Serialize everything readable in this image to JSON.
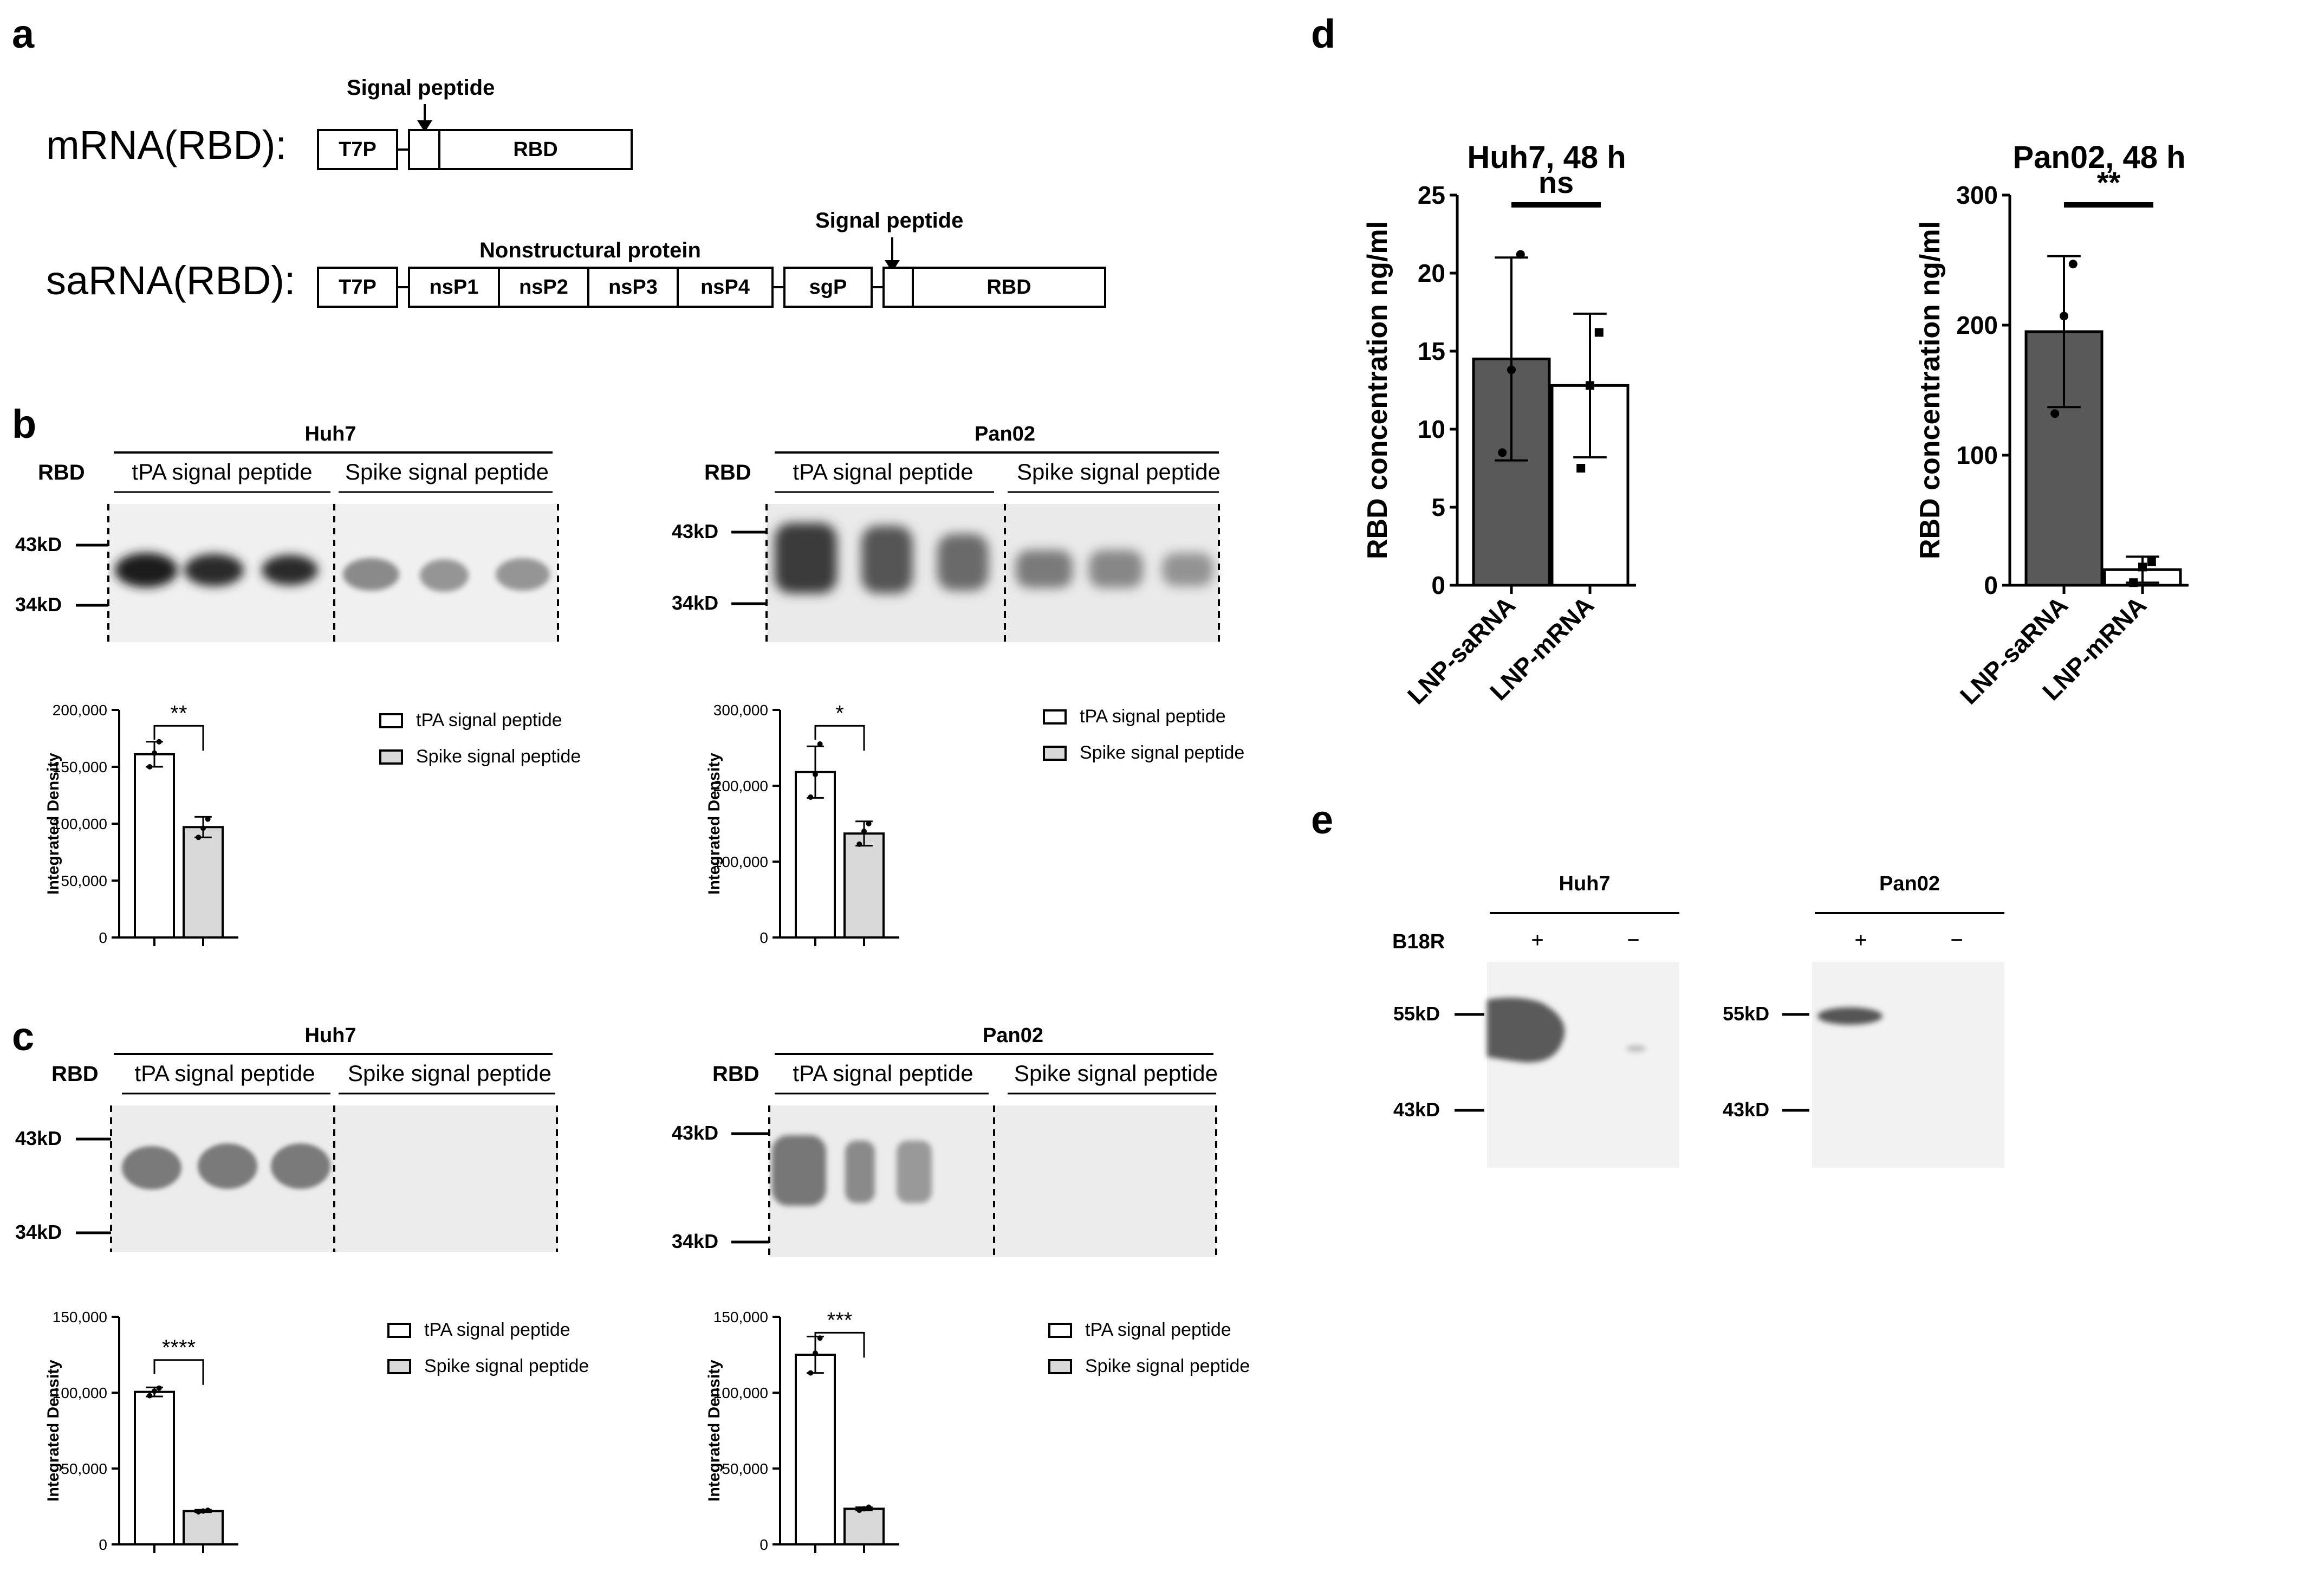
{
  "panel_labels": {
    "a": "a",
    "b": "b",
    "c": "c",
    "d": "d",
    "e": "e"
  },
  "panel_a": {
    "mrna_label": "mRNA(RBD):",
    "sarna_label": "saRNA(RBD):",
    "signal_peptide": "Signal peptide",
    "nonstructural_protein": "Nonstructural protein",
    "mrna_boxes": [
      "T7P",
      "",
      "RBD"
    ],
    "sarna_boxes": [
      "T7P",
      "nsP1",
      "nsP2",
      "nsP3",
      "nsP4",
      "sgP",
      "",
      "RBD"
    ]
  },
  "blots": {
    "rbd_label": "RBD",
    "tpa_header": "tPA signal peptide",
    "spike_header": "Spike signal peptide",
    "b_huh7": {
      "cell": "Huh7",
      "marker_top": "43kD",
      "marker_bottom": "34kD"
    },
    "b_pan02": {
      "cell": "Pan02",
      "marker_top": "43kD",
      "marker_bottom": "34kD"
    },
    "c_huh7": {
      "cell": "Huh7",
      "marker_top": "43kD",
      "marker_bottom": "34kD"
    },
    "c_pan02": {
      "cell": "Pan02",
      "marker_top": "43kD",
      "marker_bottom": "34kD"
    }
  },
  "legend": {
    "tpa": "tPA signal peptide",
    "spike": "Spike signal peptide"
  },
  "panel_e": {
    "huh7": "Huh7",
    "pan02": "Pan02",
    "b18r": "B18R",
    "plus": "+",
    "minus": "−",
    "marker_top": "55kD",
    "marker_bottom": "43kD"
  },
  "colors": {
    "dark_bar": "#595959",
    "light_bar": "#d9d9d9",
    "white_bar": "#ffffff",
    "band": "#2b2b2b"
  },
  "chart_data": [
    {
      "id": "b_huh7",
      "type": "bar",
      "categories": [
        "tPA signal peptide",
        "Spike signal peptide"
      ],
      "values": [
        161000,
        97000
      ],
      "errors": [
        11000,
        9000
      ],
      "points": [
        [
          150000,
          162000,
          172000
        ],
        [
          88000,
          96000,
          104000
        ]
      ],
      "ylabel": "Integrated Density",
      "ylim": [
        0,
        200000
      ],
      "yticks": [
        "0",
        "50,000",
        "100,000",
        "150,000",
        "200,000"
      ],
      "significance": "**"
    },
    {
      "id": "b_pan02",
      "type": "bar",
      "categories": [
        "tPA signal peptide",
        "Spike signal peptide"
      ],
      "values": [
        218000,
        137000
      ],
      "errors": [
        34000,
        16000
      ],
      "points": [
        [
          185000,
          215000,
          255000
        ],
        [
          123000,
          140000,
          150000
        ]
      ],
      "ylabel": "Integrated Density",
      "ylim": [
        0,
        300000
      ],
      "yticks": [
        "0",
        "100,000",
        "200,000",
        "300,000"
      ],
      "significance": "*"
    },
    {
      "id": "c_huh7",
      "type": "bar",
      "categories": [
        "tPA signal peptide",
        "Spike signal peptide"
      ],
      "values": [
        100500,
        22000
      ],
      "errors": [
        3000,
        800
      ],
      "points": [
        [
          98000,
          101000,
          103000
        ],
        [
          21500,
          22000,
          22500
        ]
      ],
      "ylabel": "Integrated Density",
      "ylim": [
        0,
        150000
      ],
      "yticks": [
        "0",
        "50,000",
        "100,000",
        "150,000"
      ],
      "significance": "****"
    },
    {
      "id": "c_pan02",
      "type": "bar",
      "categories": [
        "tPA signal peptide",
        "Spike signal peptide"
      ],
      "values": [
        125000,
        23500
      ],
      "errors": [
        12000,
        1000
      ],
      "points": [
        [
          113000,
          126000,
          136000
        ],
        [
          22500,
          23500,
          24500
        ]
      ],
      "ylabel": "Integrated Density",
      "ylim": [
        0,
        150000
      ],
      "yticks": [
        "0",
        "50,000",
        "100,000",
        "150,000"
      ],
      "significance": "***"
    },
    {
      "id": "d_huh7",
      "type": "bar",
      "title": "Huh7, 48 h",
      "categories": [
        "LNP-saRNA",
        "LNP-mRNA"
      ],
      "values": [
        14.5,
        12.8
      ],
      "errors": [
        6.5,
        4.6
      ],
      "points": [
        [
          8.5,
          13.8,
          21.2
        ],
        [
          7.5,
          12.8,
          16.2
        ]
      ],
      "ylabel": "RBD concentration ng/ml",
      "ylim": [
        0,
        25
      ],
      "yticks": [
        "0",
        "5",
        "10",
        "15",
        "20",
        "25"
      ],
      "significance": "ns"
    },
    {
      "id": "d_pan02",
      "type": "bar",
      "title": "Pan02, 48 h",
      "categories": [
        "LNP-saRNA",
        "LNP-mRNA"
      ],
      "values": [
        195,
        12
      ],
      "errors": [
        58,
        10
      ],
      "points": [
        [
          132,
          207,
          247
        ],
        [
          2,
          14,
          18
        ]
      ],
      "ylabel": "RBD concentration ng/ml",
      "ylim": [
        0,
        300
      ],
      "yticks": [
        "0",
        "100",
        "200",
        "300"
      ],
      "significance": "**"
    }
  ]
}
